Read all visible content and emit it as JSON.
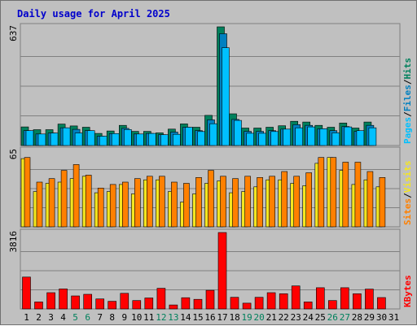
{
  "colors": {
    "background": "#c0c0c0",
    "title": "#0000cc",
    "hits": "#00805c",
    "files": "#0080c0",
    "pages": "#00c0ff",
    "visits": "#f4e620",
    "sites": "#ff8000",
    "kbytes": "#ff0000",
    "weekend_day": "#00805c",
    "weekday": "#000000"
  },
  "chart_data": {
    "type": "bar",
    "title": "Daily usage for April 2025",
    "days": [
      "1",
      "2",
      "3",
      "4",
      "5",
      "6",
      "7",
      "8",
      "9",
      "10",
      "11",
      "12",
      "13",
      "14",
      "15",
      "16",
      "17",
      "18",
      "19",
      "20",
      "21",
      "22",
      "23",
      "24",
      "25",
      "26",
      "27",
      "28",
      "29",
      "30",
      "31"
    ],
    "weekend_days": [
      "5",
      "6",
      "12",
      "13",
      "19",
      "20",
      "26",
      "27"
    ],
    "panels": [
      {
        "id": "requests",
        "max_label": "637",
        "ylim": [
          0,
          637
        ],
        "legend": [
          "Pages",
          "/",
          "Files",
          "/",
          "Hits"
        ],
        "series": [
          {
            "name": "Hits",
            "values": [
              100,
              85,
              85,
              115,
              105,
              98,
              65,
              78,
              108,
              76,
              76,
              68,
              88,
              116,
              98,
              162,
              637,
              170,
              94,
              94,
              98,
              106,
              130,
              126,
              108,
              98,
              121,
              94,
              126,
              0,
              0
            ]
          },
          {
            "name": "Files",
            "values": [
              80,
              62,
              67,
              95,
              87,
              80,
              50,
              64,
              92,
              62,
              65,
              58,
              72,
              98,
              80,
              138,
              600,
              140,
              76,
              76,
              80,
              88,
              112,
              108,
              90,
              80,
              102,
              76,
              108,
              0,
              0
            ]
          },
          {
            "name": "Pages",
            "values": [
              80,
              62,
              67,
              95,
              67,
              80,
              50,
              64,
              86,
              62,
              65,
              58,
              60,
              98,
              75,
              117,
              525,
              135,
              66,
              66,
              75,
              88,
              95,
              100,
              90,
              68,
              100,
              80,
              95,
              0,
              0
            ]
          }
        ]
      },
      {
        "id": "visitors",
        "max_label": "65",
        "ylim": [
          0,
          65
        ],
        "legend": [
          "Sites",
          "/",
          "Visits"
        ],
        "series": [
          {
            "name": "Visits",
            "values": [
              58,
              30,
              37,
              38,
              41,
              43,
              29,
              30,
              36,
              28,
              40,
              40,
              30,
              21,
              28,
              37,
              39,
              29,
              30,
              34,
              40,
              40,
              37,
              35,
              54,
              59,
              48,
              36,
              40,
              34,
              0
            ]
          },
          {
            "name": "Sites",
            "values": [
              59,
              38,
              41,
              48,
              53,
              44,
              33,
              36,
              38,
              41,
              43,
              43,
              38,
              37,
              42,
              48,
              43,
              41,
              43,
              42,
              43,
              47,
              43,
              46,
              59,
              59,
              55,
              55,
              47,
              42,
              0
            ]
          }
        ]
      },
      {
        "id": "kbytes",
        "max_label": "3816",
        "ylim": [
          0,
          3816
        ],
        "legend": [
          "KBytes"
        ],
        "series": [
          {
            "name": "KBytes",
            "values": [
              1590,
              350,
              810,
              1000,
              650,
              730,
              500,
              380,
              780,
              420,
              550,
              1030,
              200,
              560,
              480,
              930,
              3816,
              580,
              290,
              580,
              810,
              760,
              1150,
              350,
              1060,
              420,
              1060,
              760,
              990,
              570,
              0
            ]
          }
        ]
      }
    ]
  }
}
